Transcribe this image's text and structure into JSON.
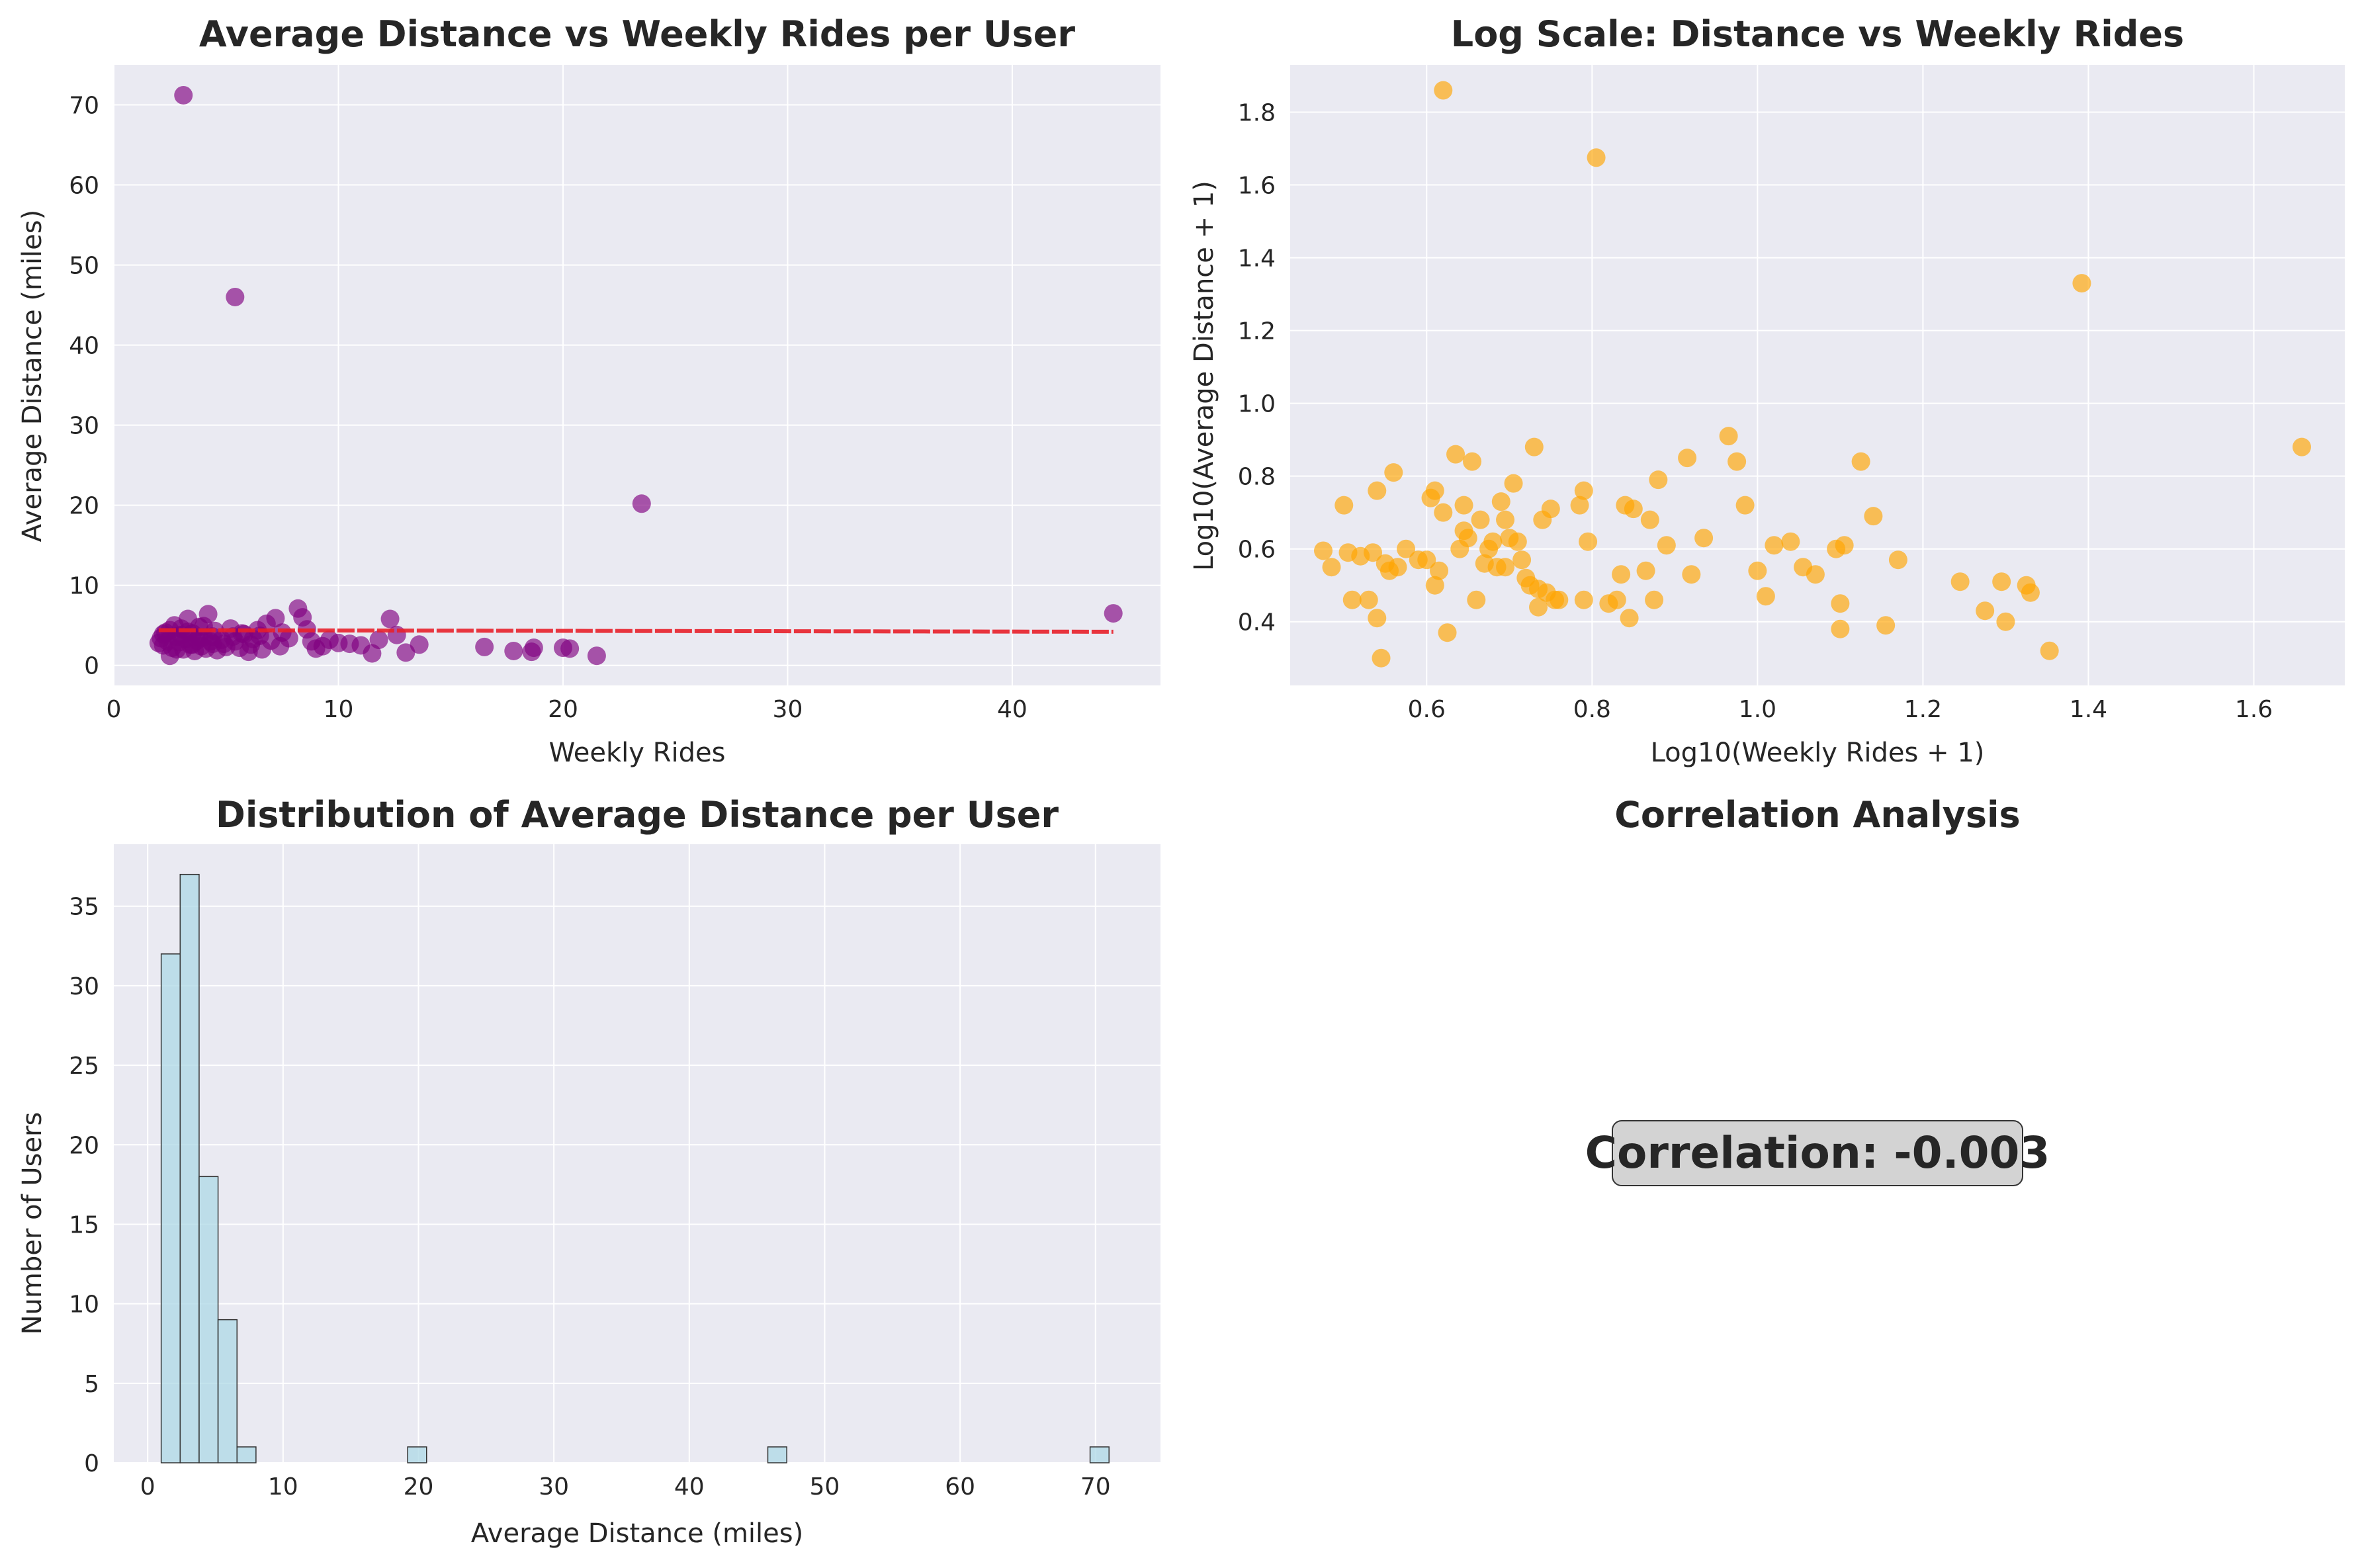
{
  "chart_data": [
    {
      "type": "scatter",
      "title": "Average Distance vs Weekly Rides per User",
      "xlabel": "Weekly Rides",
      "ylabel": "Average Distance (miles)",
      "xlim": [
        0,
        46.6
      ],
      "ylim": [
        -2.5,
        75
      ],
      "xticks": [
        0,
        10,
        20,
        30,
        40
      ],
      "yticks": [
        0,
        10,
        20,
        30,
        40,
        50,
        60,
        70
      ],
      "grid": true,
      "point_color": "#800080",
      "trend_color": "#e8202a",
      "trend_line": {
        "x": [
          2,
          44.5
        ],
        "y": [
          4.4,
          4.2
        ]
      },
      "points": [
        [
          3.1,
          71.2
        ],
        [
          5.4,
          46
        ],
        [
          23.5,
          20.2
        ],
        [
          44.5,
          6.5
        ],
        [
          2.0,
          2.8
        ],
        [
          2.1,
          3.4
        ],
        [
          2.2,
          2.5
        ],
        [
          2.3,
          4.1
        ],
        [
          2.4,
          3.0
        ],
        [
          2.5,
          1.2
        ],
        [
          2.6,
          2.2
        ],
        [
          2.7,
          5.0
        ],
        [
          2.8,
          3.6
        ],
        [
          2.9,
          2.9
        ],
        [
          3.0,
          4.6
        ],
        [
          3.1,
          2.0
        ],
        [
          3.2,
          3.3
        ],
        [
          3.3,
          5.8
        ],
        [
          3.4,
          2.6
        ],
        [
          3.5,
          4.0
        ],
        [
          3.6,
          1.8
        ],
        [
          3.7,
          3.1
        ],
        [
          3.8,
          4.8
        ],
        [
          3.9,
          2.4
        ],
        [
          4.0,
          3.5
        ],
        [
          4.1,
          2.1
        ],
        [
          4.2,
          6.4
        ],
        [
          4.3,
          3.0
        ],
        [
          4.4,
          2.7
        ],
        [
          4.5,
          4.3
        ],
        [
          4.6,
          1.9
        ],
        [
          4.8,
          3.2
        ],
        [
          5.0,
          2.3
        ],
        [
          5.2,
          4.6
        ],
        [
          5.4,
          3.0
        ],
        [
          5.6,
          2.2
        ],
        [
          5.8,
          3.9
        ],
        [
          6.0,
          1.7
        ],
        [
          6.2,
          3.3
        ],
        [
          6.4,
          4.4
        ],
        [
          6.6,
          2.0
        ],
        [
          6.8,
          5.2
        ],
        [
          7.0,
          3.1
        ],
        [
          7.2,
          5.9
        ],
        [
          7.4,
          2.4
        ],
        [
          7.8,
          3.4
        ],
        [
          8.2,
          7.1
        ],
        [
          8.4,
          6.0
        ],
        [
          8.6,
          4.5
        ],
        [
          8.8,
          3.0
        ],
        [
          9.0,
          2.1
        ],
        [
          9.3,
          2.4
        ],
        [
          9.6,
          3.2
        ],
        [
          10.0,
          2.8
        ],
        [
          10.5,
          2.7
        ],
        [
          11.0,
          2.5
        ],
        [
          11.5,
          1.5
        ],
        [
          11.8,
          3.2
        ],
        [
          12.3,
          5.8
        ],
        [
          12.6,
          3.8
        ],
        [
          13.0,
          1.6
        ],
        [
          13.6,
          2.6
        ],
        [
          16.5,
          2.3
        ],
        [
          17.8,
          1.8
        ],
        [
          18.6,
          1.7
        ],
        [
          18.7,
          2.2
        ],
        [
          20.0,
          2.2
        ],
        [
          20.3,
          2.1
        ],
        [
          21.5,
          1.2
        ],
        [
          2.2,
          3.9
        ],
        [
          2.5,
          4.4
        ],
        [
          2.8,
          2.0
        ],
        [
          3.0,
          3.8
        ],
        [
          3.3,
          4.2
        ],
        [
          3.5,
          2.6
        ],
        [
          3.8,
          3.5
        ],
        [
          4.0,
          4.9
        ],
        [
          4.4,
          3.6
        ],
        [
          4.9,
          2.7
        ],
        [
          5.3,
          3.6
        ],
        [
          5.7,
          4.0
        ],
        [
          6.1,
          2.6
        ],
        [
          6.5,
          3.7
        ],
        [
          7.5,
          4.1
        ]
      ]
    },
    {
      "type": "scatter",
      "title": "Log Scale: Distance vs Weekly Rides",
      "xlabel": "Log10(Weekly Rides + 1)",
      "ylabel": "Log10(Average Distance + 1)",
      "xlim": [
        0.435,
        1.71
      ],
      "ylim": [
        0.225,
        1.93
      ],
      "xticks": [
        0.6,
        0.8,
        1.0,
        1.2,
        1.4,
        1.6
      ],
      "xtick_labels": [
        "0.6",
        "0.8",
        "1.0",
        "1.2",
        "1.4",
        "1.6"
      ],
      "yticks": [
        0.4,
        0.6,
        0.8,
        1.0,
        1.2,
        1.4,
        1.6,
        1.8
      ],
      "ytick_labels": [
        "0.4",
        "0.6",
        "0.8",
        "1.0",
        "1.2",
        "1.4",
        "1.6",
        "1.8"
      ],
      "grid": true,
      "point_color": "#ffa500",
      "points": [
        [
          0.62,
          1.86
        ],
        [
          0.805,
          1.675
        ],
        [
          1.392,
          1.33
        ],
        [
          1.658,
          0.88
        ],
        [
          1.353,
          0.32
        ],
        [
          0.475,
          0.595
        ],
        [
          0.485,
          0.55
        ],
        [
          0.5,
          0.72
        ],
        [
          0.505,
          0.59
        ],
        [
          0.51,
          0.46
        ],
        [
          0.52,
          0.58
        ],
        [
          0.53,
          0.46
        ],
        [
          0.535,
          0.59
        ],
        [
          0.54,
          0.76
        ],
        [
          0.54,
          0.41
        ],
        [
          0.545,
          0.3
        ],
        [
          0.55,
          0.56
        ],
        [
          0.555,
          0.54
        ],
        [
          0.56,
          0.81
        ],
        [
          0.565,
          0.55
        ],
        [
          0.575,
          0.6
        ],
        [
          0.59,
          0.57
        ],
        [
          0.6,
          0.57
        ],
        [
          0.605,
          0.74
        ],
        [
          0.61,
          0.76
        ],
        [
          0.61,
          0.5
        ],
        [
          0.615,
          0.54
        ],
        [
          0.62,
          0.7
        ],
        [
          0.625,
          0.37
        ],
        [
          0.635,
          0.86
        ],
        [
          0.64,
          0.6
        ],
        [
          0.645,
          0.72
        ],
        [
          0.645,
          0.65
        ],
        [
          0.65,
          0.63
        ],
        [
          0.655,
          0.84
        ],
        [
          0.66,
          0.46
        ],
        [
          0.665,
          0.68
        ],
        [
          0.67,
          0.56
        ],
        [
          0.675,
          0.6
        ],
        [
          0.68,
          0.62
        ],
        [
          0.685,
          0.55
        ],
        [
          0.69,
          0.73
        ],
        [
          0.695,
          0.55
        ],
        [
          0.695,
          0.68
        ],
        [
          0.7,
          0.63
        ],
        [
          0.705,
          0.78
        ],
        [
          0.71,
          0.62
        ],
        [
          0.715,
          0.57
        ],
        [
          0.72,
          0.52
        ],
        [
          0.725,
          0.5
        ],
        [
          0.73,
          0.88
        ],
        [
          0.735,
          0.44
        ],
        [
          0.735,
          0.49
        ],
        [
          0.74,
          0.68
        ],
        [
          0.745,
          0.48
        ],
        [
          0.75,
          0.71
        ],
        [
          0.755,
          0.46
        ],
        [
          0.76,
          0.46
        ],
        [
          0.785,
          0.72
        ],
        [
          0.79,
          0.76
        ],
        [
          0.79,
          0.46
        ],
        [
          0.795,
          0.62
        ],
        [
          0.82,
          0.45
        ],
        [
          0.83,
          0.46
        ],
        [
          0.835,
          0.53
        ],
        [
          0.84,
          0.72
        ],
        [
          0.845,
          0.41
        ],
        [
          0.85,
          0.71
        ],
        [
          0.865,
          0.54
        ],
        [
          0.87,
          0.68
        ],
        [
          0.875,
          0.46
        ],
        [
          0.88,
          0.79
        ],
        [
          0.89,
          0.61
        ],
        [
          0.915,
          0.85
        ],
        [
          0.92,
          0.53
        ],
        [
          0.935,
          0.63
        ],
        [
          0.965,
          0.91
        ],
        [
          0.975,
          0.84
        ],
        [
          0.985,
          0.72
        ],
        [
          1.0,
          0.54
        ],
        [
          1.01,
          0.47
        ],
        [
          1.02,
          0.61
        ],
        [
          1.04,
          0.62
        ],
        [
          1.055,
          0.55
        ],
        [
          1.07,
          0.53
        ],
        [
          1.095,
          0.6
        ],
        [
          1.1,
          0.45
        ],
        [
          1.1,
          0.38
        ],
        [
          1.105,
          0.61
        ],
        [
          1.125,
          0.84
        ],
        [
          1.14,
          0.69
        ],
        [
          1.155,
          0.39
        ],
        [
          1.17,
          0.57
        ],
        [
          1.245,
          0.51
        ],
        [
          1.275,
          0.43
        ],
        [
          1.295,
          0.51
        ],
        [
          1.3,
          0.4
        ],
        [
          1.325,
          0.5
        ],
        [
          1.33,
          0.48
        ]
      ]
    },
    {
      "type": "bar",
      "title": "Distribution of Average Distance per User",
      "xlabel": "Average Distance (miles)",
      "ylabel": "Number of Users",
      "xlim": [
        -2.5,
        74.8
      ],
      "ylim": [
        0,
        38.9
      ],
      "xticks": [
        0,
        10,
        20,
        30,
        40,
        50,
        60,
        70
      ],
      "yticks": [
        0,
        5,
        10,
        15,
        20,
        25,
        30,
        35
      ],
      "grid": true,
      "bar_color": "#add8e6",
      "bin_width": 1.4,
      "bins_start": [
        1.0,
        2.4,
        3.8,
        5.2,
        6.6,
        19.2,
        45.8,
        69.6
      ],
      "values": [
        32,
        37,
        18,
        9,
        1,
        1,
        1,
        1
      ]
    },
    {
      "type": "table",
      "title": "Correlation Analysis",
      "text": "Correlation: -0.003"
    }
  ],
  "style": {
    "figure_bg": "#ffffff",
    "axes_bg": "#eaeaf2",
    "grid_color": "#ffffff",
    "text_color": "#262626",
    "annotation_box_fill": "#d3d3d3"
  }
}
